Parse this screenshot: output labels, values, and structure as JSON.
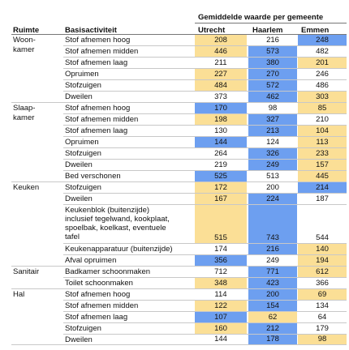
{
  "header": {
    "group_title": "Gemiddelde waarde per gemeente",
    "col_room": "Ruimte",
    "col_activity": "Basisactiviteit",
    "cities": [
      "Utrecht",
      "Haarlem",
      "Emmen"
    ]
  },
  "colors": {
    "yellow": "#fbdf96",
    "blue": "#6d9ff0",
    "none": ""
  },
  "rows": [
    {
      "room": "Woon-\nkamer",
      "activity": "Stof afnemen hoog",
      "values": [
        "208",
        "216",
        "248"
      ],
      "shade": [
        "y",
        "",
        "b"
      ]
    },
    {
      "room": "",
      "activity": "Stof afnemen midden",
      "values": [
        "446",
        "573",
        "482"
      ],
      "shade": [
        "y",
        "b",
        ""
      ]
    },
    {
      "room": "",
      "activity": "Stof afnemen laag",
      "values": [
        "211",
        "380",
        "201"
      ],
      "shade": [
        "",
        "b",
        "y"
      ]
    },
    {
      "room": "",
      "activity": "Opruimen",
      "values": [
        "227",
        "270",
        "246"
      ],
      "shade": [
        "y",
        "b",
        ""
      ]
    },
    {
      "room": "",
      "activity": "Stofzuigen",
      "values": [
        "484",
        "572",
        "486"
      ],
      "shade": [
        "y",
        "b",
        ""
      ]
    },
    {
      "room": "",
      "activity": "Dweilen",
      "values": [
        "373",
        "462",
        "303"
      ],
      "shade": [
        "",
        "b",
        "y"
      ]
    },
    {
      "room": "Slaap-\nkamer",
      "activity": "Stof afnemen hoog",
      "values": [
        "170",
        "98",
        "85"
      ],
      "shade": [
        "b",
        "",
        "y"
      ]
    },
    {
      "room": "",
      "activity": "Stof afnemen midden",
      "values": [
        "198",
        "327",
        "210"
      ],
      "shade": [
        "y",
        "b",
        ""
      ]
    },
    {
      "room": "",
      "activity": "Stof afnemen laag",
      "values": [
        "130",
        "213",
        "104"
      ],
      "shade": [
        "",
        "b",
        "y"
      ]
    },
    {
      "room": "",
      "activity": "Opruimen",
      "values": [
        "144",
        "124",
        "113"
      ],
      "shade": [
        "b",
        "",
        "y"
      ]
    },
    {
      "room": "",
      "activity": "Stofzuigen",
      "values": [
        "264",
        "326",
        "233"
      ],
      "shade": [
        "",
        "b",
        "y"
      ]
    },
    {
      "room": "",
      "activity": "Dweilen",
      "values": [
        "219",
        "249",
        "157"
      ],
      "shade": [
        "",
        "b",
        "y"
      ]
    },
    {
      "room": "",
      "activity": "Bed verschonen",
      "values": [
        "525",
        "513",
        "445"
      ],
      "shade": [
        "b",
        "",
        "y"
      ]
    },
    {
      "room": "Keuken",
      "activity": "Stofzuigen",
      "values": [
        "172",
        "200",
        "214"
      ],
      "shade": [
        "y",
        "",
        "b"
      ]
    },
    {
      "room": "",
      "activity": "Dweilen",
      "values": [
        "167",
        "224",
        "187"
      ],
      "shade": [
        "y",
        "b",
        ""
      ]
    },
    {
      "room": "",
      "activity": "Keukenblok (buitenzijde)\ninclusief tegelwand, kookplaat,\nspoelbak, koelkast, eventuele\ntafel",
      "values": [
        "515",
        "743",
        "544"
      ],
      "shade": [
        "y",
        "b",
        ""
      ]
    },
    {
      "room": "",
      "activity": "Keukenapparatuur (buitenzijde)",
      "values": [
        "174",
        "216",
        "140"
      ],
      "shade": [
        "",
        "b",
        "y"
      ]
    },
    {
      "room": "",
      "activity": "Afval opruimen",
      "values": [
        "356",
        "249",
        "194"
      ],
      "shade": [
        "b",
        "",
        "y"
      ]
    },
    {
      "room": "Sanitair",
      "activity": "Badkamer schoonmaken",
      "values": [
        "712",
        "771",
        "612"
      ],
      "shade": [
        "",
        "b",
        "y"
      ]
    },
    {
      "room": "",
      "activity": "Toilet schoonmaken",
      "values": [
        "348",
        "423",
        "366"
      ],
      "shade": [
        "y",
        "b",
        ""
      ]
    },
    {
      "room": "Hal",
      "activity": "Stof afnemen hoog",
      "values": [
        "114",
        "200",
        "69"
      ],
      "shade": [
        "",
        "b",
        "y"
      ]
    },
    {
      "room": "",
      "activity": "Stof afnemen midden",
      "values": [
        "122",
        "154",
        "134"
      ],
      "shade": [
        "y",
        "b",
        ""
      ]
    },
    {
      "room": "",
      "activity": "Stof afnemen laag",
      "values": [
        "107",
        "62",
        "64"
      ],
      "shade": [
        "b",
        "y",
        ""
      ]
    },
    {
      "room": "",
      "activity": "Stofzuigen",
      "values": [
        "160",
        "212",
        "179"
      ],
      "shade": [
        "y",
        "b",
        ""
      ]
    },
    {
      "room": "",
      "activity": "Dweilen",
      "values": [
        "144",
        "178",
        "98"
      ],
      "shade": [
        "",
        "b",
        "y"
      ]
    }
  ]
}
